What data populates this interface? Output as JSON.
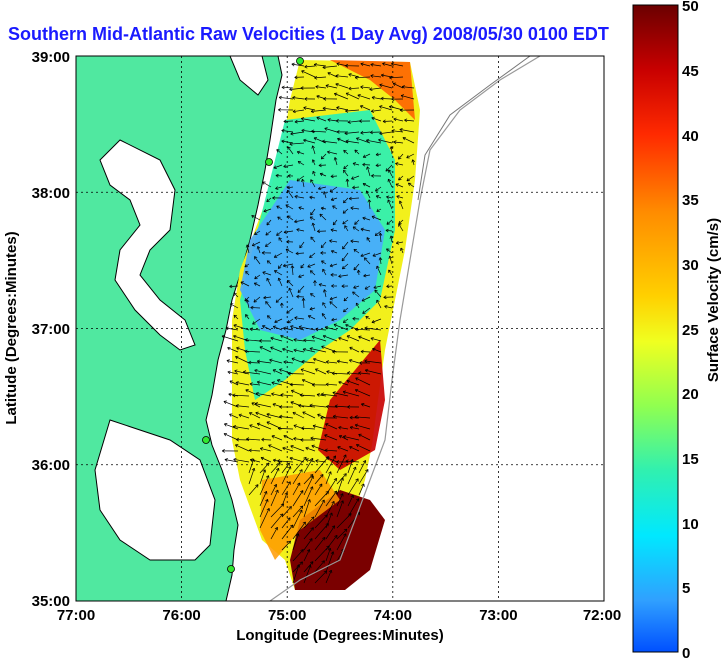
{
  "title": "Southern Mid-Atlantic Raw Velocities (1 Day Avg) 2008/05/30 0100 EDT",
  "map": {
    "xlabel": "Longitude (Degrees:Minutes)",
    "ylabel": "Latitude (Degrees:Minutes)",
    "x_ticks": [
      "77:00",
      "76:00",
      "75:00",
      "74:00",
      "73:00",
      "72:00"
    ],
    "y_ticks": [
      "39:00",
      "38:00",
      "37:00",
      "36:00",
      "35:00"
    ],
    "land_color": "#50e8a0",
    "grid": true
  },
  "colorbar": {
    "label": "Surface Velocity (cm/s)",
    "ticks": [
      "50",
      "45",
      "40",
      "35",
      "30",
      "25",
      "20",
      "15",
      "10",
      "5",
      "0"
    ],
    "min": 0,
    "max": 50,
    "colors_high_to_low": [
      "#6b0000",
      "#c80000",
      "#ff3300",
      "#ff8c00",
      "#ffd000",
      "#f0ff20",
      "#90ff50",
      "#30f0b0",
      "#00e8ff",
      "#30a0ff",
      "#0050ff"
    ]
  }
}
